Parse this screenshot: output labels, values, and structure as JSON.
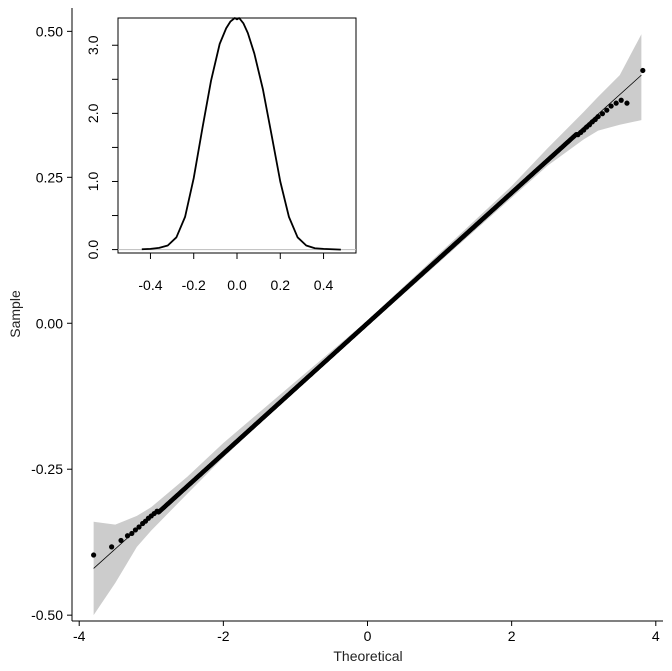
{
  "chart_data": [
    {
      "type": "scatter",
      "subtype": "qq-plot",
      "xlabel": "Theoretical",
      "ylabel": "Sample",
      "xlim": [
        -4.1,
        4.1
      ],
      "ylim": [
        -0.51,
        0.54
      ],
      "xticks": [
        "-4",
        "-2",
        "0",
        "2",
        "4"
      ],
      "xtick_values": [
        -4,
        -2,
        0,
        2,
        4
      ],
      "yticks": [
        "-0.50",
        "-0.25",
        "0.00",
        "0.25",
        "0.50"
      ],
      "ytick_values": [
        -0.5,
        -0.25,
        0,
        0.25,
        0.5
      ],
      "reference_line": {
        "x": [
          -3.8,
          3.8
        ],
        "y": [
          -0.42,
          0.425
        ]
      },
      "confidence_band": {
        "x": [
          -3.8,
          -3.5,
          -3.2,
          -3.0,
          -2.5,
          -2.0,
          -1.0,
          0.0,
          1.0,
          2.0,
          2.5,
          3.0,
          3.2,
          3.5,
          3.8
        ],
        "lower": [
          -0.5,
          -0.445,
          -0.383,
          -0.355,
          -0.292,
          -0.23,
          -0.115,
          -0.005,
          0.105,
          0.215,
          0.27,
          0.315,
          0.33,
          0.34,
          0.348
        ],
        "upper": [
          -0.34,
          -0.345,
          -0.33,
          -0.315,
          -0.263,
          -0.205,
          -0.1,
          0.005,
          0.12,
          0.235,
          0.3,
          0.362,
          0.388,
          0.425,
          0.495
        ]
      },
      "points": {
        "tail_low": [
          [
            -3.8,
            -0.397
          ],
          [
            -3.55,
            -0.383
          ],
          [
            -3.42,
            -0.372
          ],
          [
            -3.33,
            -0.364
          ],
          [
            -3.27,
            -0.36
          ],
          [
            -3.22,
            -0.354
          ],
          [
            -3.17,
            -0.349
          ],
          [
            -3.12,
            -0.343
          ],
          [
            -3.08,
            -0.339
          ],
          [
            -3.04,
            -0.334
          ],
          [
            -3.0,
            -0.33
          ],
          [
            -2.96,
            -0.326
          ],
          [
            -2.92,
            -0.322
          ]
        ],
        "tail_high": [
          [
            2.92,
            0.323
          ],
          [
            2.96,
            0.327
          ],
          [
            3.0,
            0.331
          ],
          [
            3.04,
            0.336
          ],
          [
            3.08,
            0.34
          ],
          [
            3.12,
            0.345
          ],
          [
            3.16,
            0.349
          ],
          [
            3.2,
            0.354
          ],
          [
            3.26,
            0.359
          ],
          [
            3.32,
            0.365
          ],
          [
            3.38,
            0.372
          ],
          [
            3.45,
            0.377
          ],
          [
            3.52,
            0.382
          ],
          [
            3.6,
            0.377
          ],
          [
            3.82,
            0.433
          ]
        ],
        "body_x_range": [
          -2.9,
          2.9
        ],
        "body_slope": 0.1117,
        "body_intercept": 0.0,
        "body_count": 1200
      },
      "point_color": "#000000",
      "band_color": "#cccccc",
      "grid": false,
      "legend": "none"
    },
    {
      "type": "line",
      "subtype": "density",
      "xlim": [
        -0.55,
        0.55
      ],
      "ylim": [
        -0.05,
        3.4
      ],
      "xticks": [
        "-0.4",
        "-0.2",
        "0.0",
        "0.2",
        "0.4"
      ],
      "xtick_values": [
        -0.4,
        -0.2,
        0.0,
        0.2,
        0.4
      ],
      "yticks": [
        "0.0",
        "1.0",
        "2.0",
        "3.0"
      ],
      "ytick_values": [
        0.0,
        1.0,
        2.0,
        3.0
      ],
      "y_minor_ticks": [
        0.5,
        1.5,
        2.5
      ],
      "baseline": 0.0,
      "x": [
        -0.44,
        -0.4,
        -0.36,
        -0.32,
        -0.28,
        -0.24,
        -0.2,
        -0.16,
        -0.12,
        -0.08,
        -0.05,
        -0.03,
        -0.01,
        0.0,
        0.01,
        0.03,
        0.05,
        0.08,
        0.12,
        0.16,
        0.2,
        0.24,
        0.28,
        0.32,
        0.36,
        0.4,
        0.44,
        0.48
      ],
      "y": [
        0.005,
        0.01,
        0.025,
        0.06,
        0.18,
        0.48,
        1.05,
        1.78,
        2.48,
        3.02,
        3.25,
        3.35,
        3.4,
        3.38,
        3.4,
        3.32,
        3.18,
        2.88,
        2.35,
        1.68,
        1.0,
        0.48,
        0.18,
        0.06,
        0.02,
        0.01,
        0.005,
        0.0
      ],
      "line_color": "#000000",
      "baseline_color": "#bbbbbb",
      "grid": false,
      "legend": "none"
    }
  ]
}
